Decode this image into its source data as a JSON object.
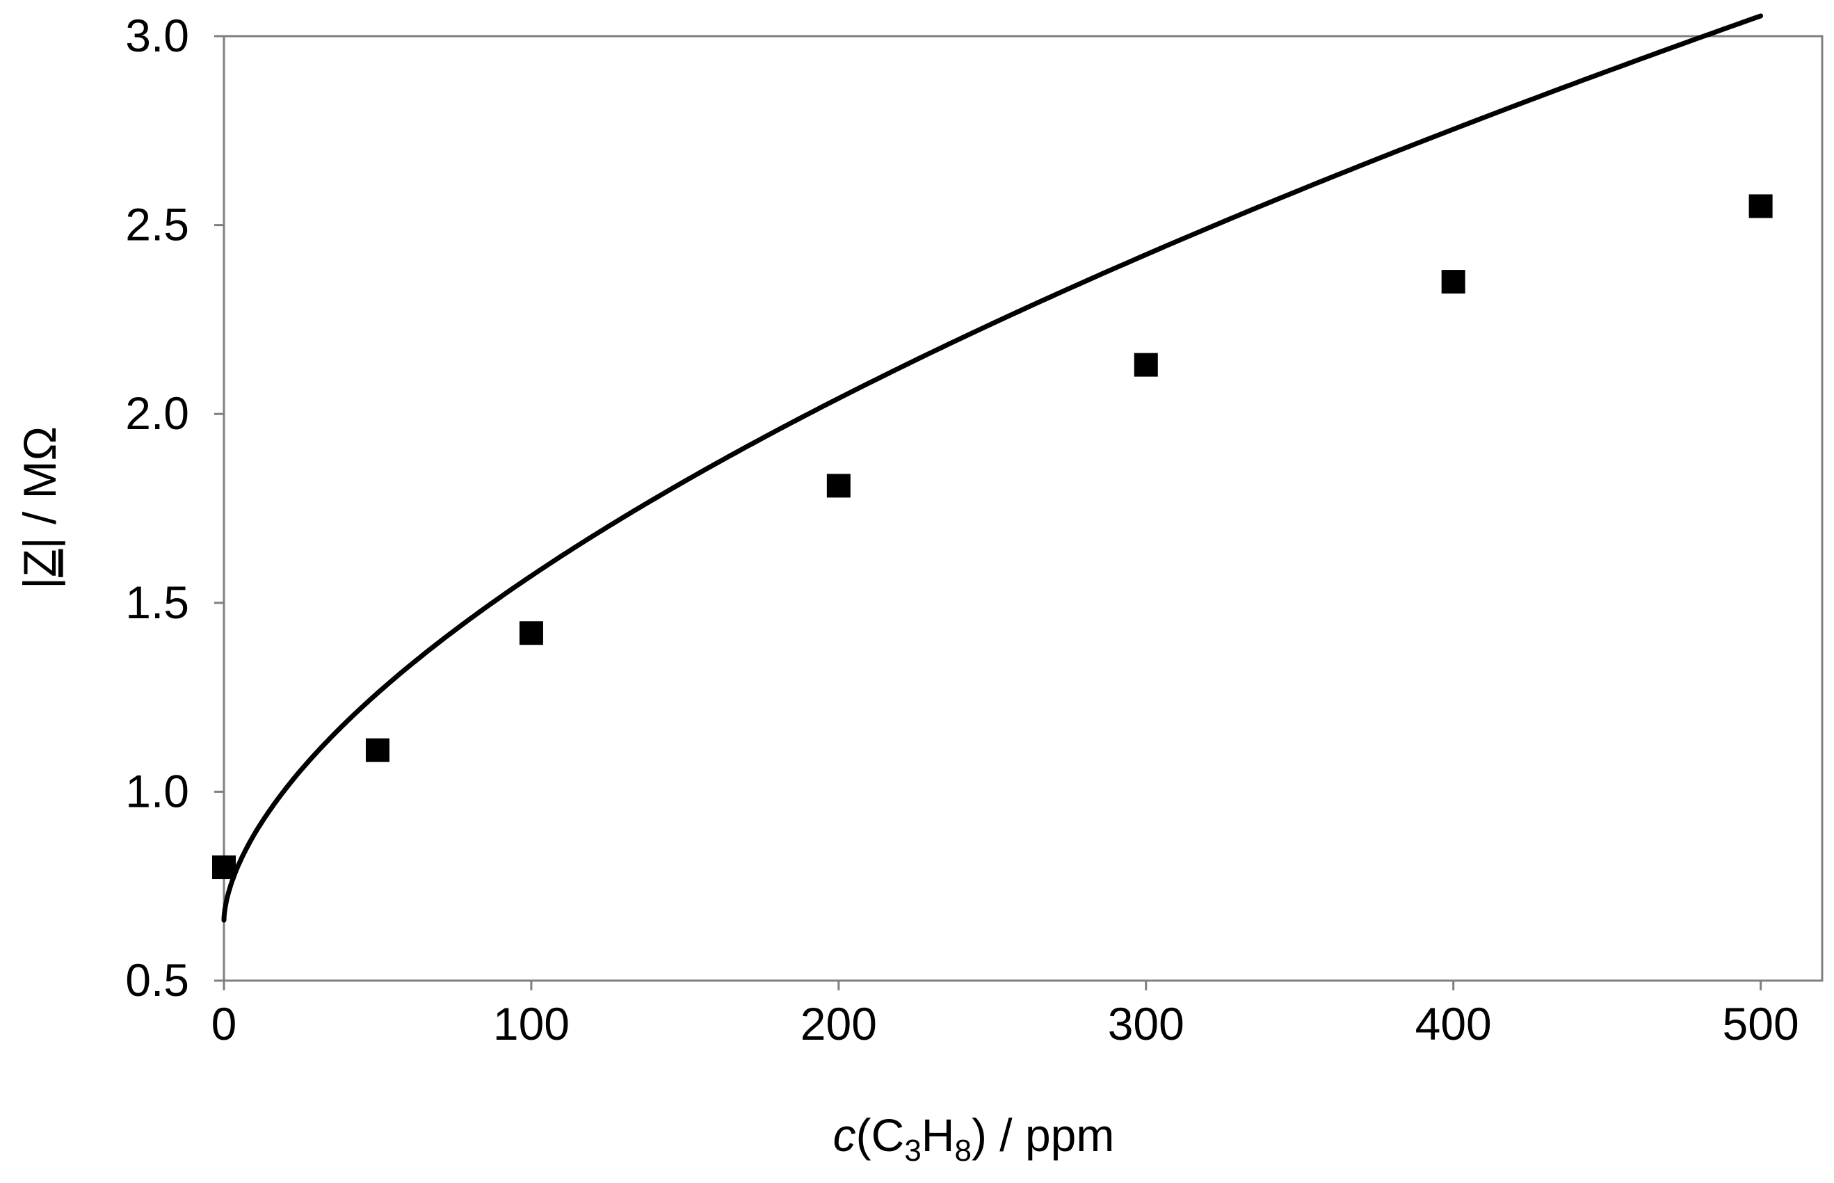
{
  "chart_data": {
    "type": "scatter",
    "title": "",
    "xlabel": {
      "italic": "c",
      "open": "(C",
      "sub1": "3",
      "mid": "H",
      "sub2": "8",
      "close": ") / ppm"
    },
    "ylabel": {
      "pre": "|",
      "z": "Z",
      "post": "| / MΩ"
    },
    "xlim": [
      0,
      520
    ],
    "ylim": [
      0.5,
      3.0
    ],
    "xticks": [
      "0",
      "100",
      "200",
      "300",
      "400",
      "500"
    ],
    "yticks": [
      "0.5",
      "1.0",
      "1.5",
      "2.0",
      "2.5",
      "3.0"
    ],
    "grid": false,
    "legend": "none",
    "series": [
      {
        "marker": "square",
        "x": [
          0,
          50,
          100,
          200,
          300,
          400,
          500
        ],
        "y": [
          0.8,
          1.11,
          1.42,
          1.81,
          2.13,
          2.35,
          2.55
        ]
      }
    ],
    "fit_curve": {
      "form": "y = a + b * x^p",
      "a": 0.66,
      "b": 0.0575,
      "p": 0.6,
      "x_range": [
        0,
        500
      ]
    },
    "colors": {
      "axis": "#7f7f7f",
      "marks": "#000000"
    }
  }
}
